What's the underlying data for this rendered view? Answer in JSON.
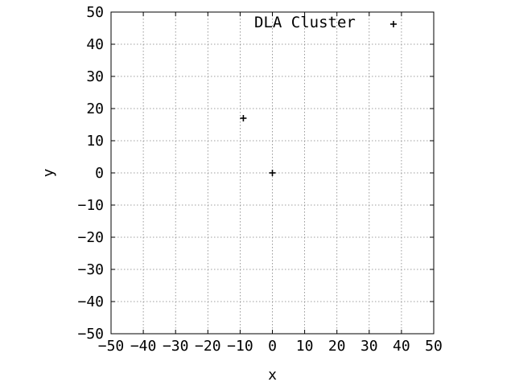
{
  "chart_data": {
    "type": "scatter",
    "title": "",
    "xlabel": "x",
    "ylabel": "y",
    "xlim": [
      -50,
      50
    ],
    "ylim": [
      -50,
      50
    ],
    "grid": true,
    "legend_position": "top-right",
    "x_ticks": [
      -50,
      -40,
      -30,
      -20,
      -10,
      0,
      10,
      20,
      30,
      40,
      50
    ],
    "y_ticks": [
      -50,
      -40,
      -30,
      -20,
      -10,
      0,
      10,
      20,
      30,
      40,
      50
    ],
    "series": [
      {
        "name": "DLA Cluster",
        "marker": "+",
        "color": "#000000",
        "points": [
          {
            "x": 0,
            "y": 0
          },
          {
            "x": -9,
            "y": 17
          }
        ]
      }
    ]
  }
}
